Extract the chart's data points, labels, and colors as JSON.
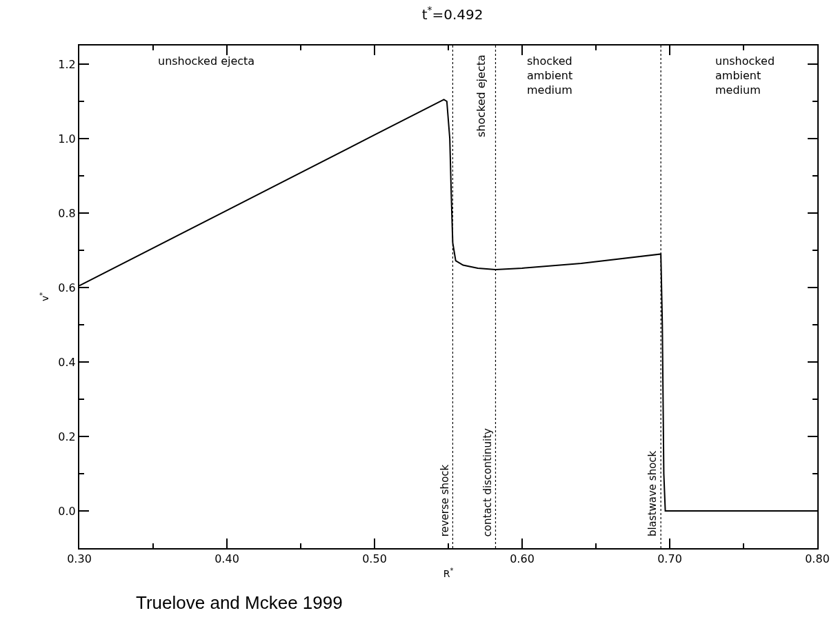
{
  "chart_data": {
    "type": "line",
    "title": "t$^{*}$=0.492",
    "xlabel": "R$^{*}$",
    "ylabel": "v$^{*}$",
    "x": [
      0.3,
      0.4,
      0.5,
      0.547,
      0.549,
      0.551,
      0.552,
      0.553,
      0.555,
      0.56,
      0.57,
      0.582,
      0.6,
      0.64,
      0.694,
      0.695,
      0.696,
      0.697,
      0.8
    ],
    "series": [
      {
        "color": "#000000",
        "values": [
          0.605,
          0.807,
          1.01,
          1.105,
          1.1,
          1.0,
          0.85,
          0.72,
          0.672,
          0.66,
          0.652,
          0.648,
          0.652,
          0.665,
          0.69,
          0.5,
          0.1,
          0.0,
          0.0
        ]
      }
    ],
    "xlim": [
      0.3,
      0.8
    ],
    "ylim": [
      -0.1,
      1.25
    ],
    "xticks": [
      {
        "value": 0.3,
        "label": "0.30"
      },
      {
        "value": 0.4,
        "label": "0.40"
      },
      {
        "value": 0.5,
        "label": "0.50"
      },
      {
        "value": 0.6,
        "label": "0.60"
      },
      {
        "value": 0.7,
        "label": "0.70"
      },
      {
        "value": 0.8,
        "label": "0.80"
      }
    ],
    "yticks": [
      {
        "value": 0,
        "label": "0.0"
      },
      0.2,
      0.4,
      0.6,
      0.8,
      {
        "value": 1,
        "label": "1.0"
      },
      1.2
    ],
    "ref_lines": [
      {
        "axis": "x",
        "value": 0.553,
        "label": "reverse shock",
        "color": "#000000",
        "line_style": "dotted"
      },
      {
        "axis": "x",
        "value": 0.582,
        "label": "contact discontinuity",
        "color": "#000000",
        "line_style": "dotted"
      },
      {
        "axis": "x",
        "value": 0.694,
        "label": "blastwave shock",
        "color": "#000000",
        "line_style": "dotted"
      }
    ],
    "annotations": [
      "unshocked ejecta",
      "shocked ejecta",
      "shocked\nambient\nmedium",
      "unshocked\nambient\nmedium",
      "Truelove and Mckee 1999"
    ],
    "marker": "none",
    "line_style": "solid"
  }
}
